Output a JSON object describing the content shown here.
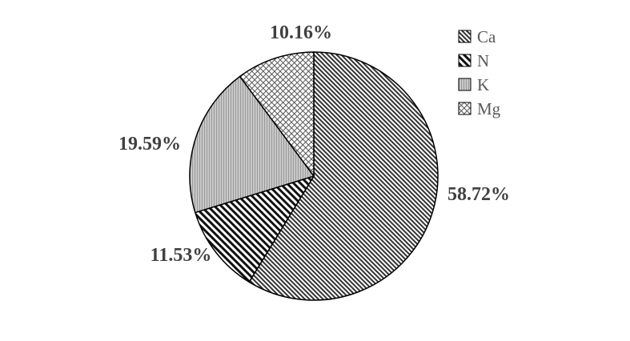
{
  "chart_data": {
    "type": "pie",
    "categories": [
      "Ca",
      "N",
      "K",
      "Mg"
    ],
    "values": [
      58.72,
      11.53,
      19.59,
      10.16
    ],
    "labels": [
      "58.72%",
      "11.53%",
      "19.59%",
      "10.16%"
    ],
    "patterns": [
      "dense-diagonal",
      "wide-diagonal",
      "vertical-gray",
      "crosshatch"
    ],
    "start": "top, clockwise",
    "legend_position": "top-right"
  }
}
